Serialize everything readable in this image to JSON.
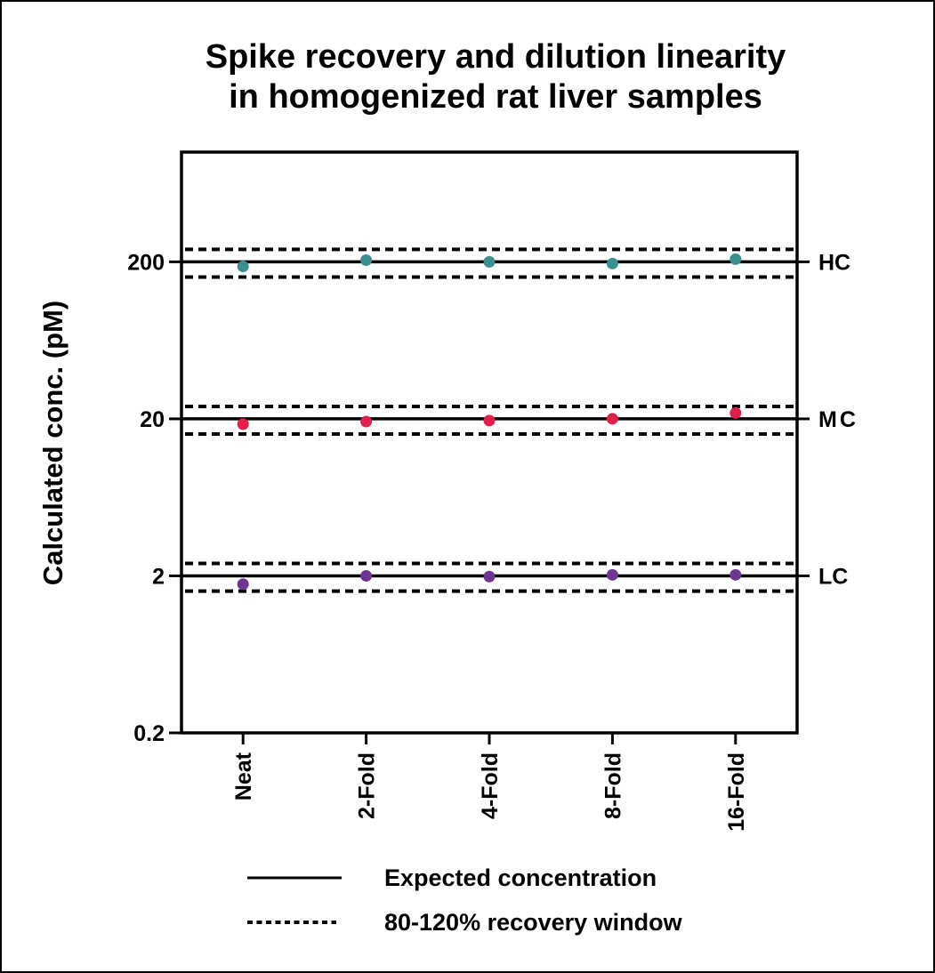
{
  "chart_data": {
    "type": "scatter",
    "title": [
      "Spike recovery and dilution linearity",
      "in homogenized rat liver samples"
    ],
    "xlabel": "",
    "ylabel": "Calculated conc. (pM)",
    "yscale": "log",
    "ylim": [
      0.2,
      1000
    ],
    "yticks": [
      0.2,
      2,
      20,
      200
    ],
    "ytick_labels": [
      "0.2",
      "2",
      "20",
      "200"
    ],
    "categories": [
      "Neat",
      "2-Fold",
      "4-Fold",
      "8-Fold",
      "16-Fold"
    ],
    "grid": false,
    "series": [
      {
        "name": "HC",
        "expected": 200,
        "color": "#3a8f8f",
        "values": [
          187,
          205,
          200,
          195,
          208
        ]
      },
      {
        "name": "MC",
        "expected": 20,
        "color": "#e0204a",
        "values": [
          18.5,
          19.2,
          19.5,
          20.0,
          21.8
        ]
      },
      {
        "name": "LC",
        "expected": 2,
        "color": "#6e3591",
        "values": [
          1.77,
          2.0,
          1.98,
          2.03,
          2.03
        ]
      }
    ],
    "recovery_window": [
      0.8,
      1.2
    ],
    "legend": {
      "position": "bottom",
      "entries": [
        {
          "label": "Expected concentration",
          "style": "solid"
        },
        {
          "label": "80-120% recovery window",
          "style": "dashed"
        }
      ]
    }
  }
}
